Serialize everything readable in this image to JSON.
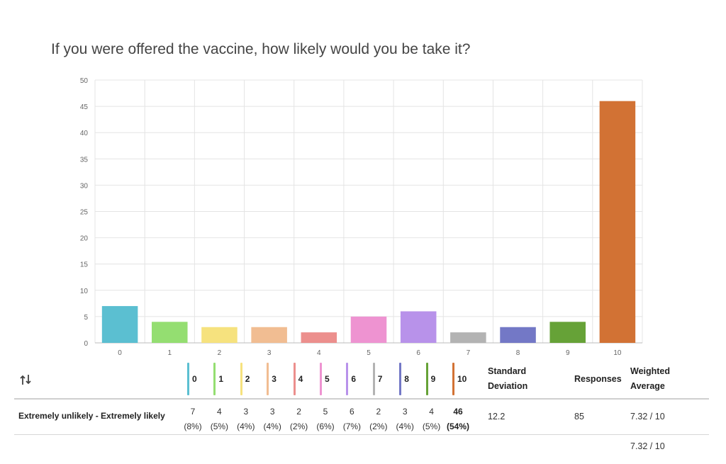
{
  "question": "If you were offered the vaccine, how likely would you be take it?",
  "chart_data": {
    "type": "bar",
    "categories": [
      "0",
      "1",
      "2",
      "3",
      "4",
      "5",
      "6",
      "7",
      "8",
      "9",
      "10"
    ],
    "values": [
      7,
      4,
      3,
      3,
      2,
      5,
      6,
      2,
      3,
      4,
      46
    ],
    "colors": [
      "#5bbfd1",
      "#94de71",
      "#f6e27e",
      "#f1bd92",
      "#ec8f8d",
      "#ee93d1",
      "#b892ea",
      "#b3b3b3",
      "#7378c6",
      "#66a237",
      "#d27234"
    ],
    "title": "If you were offered the vaccine, how likely would you be take it?",
    "xlabel": "",
    "ylabel": "",
    "ylim": [
      0,
      50
    ],
    "yticks": [
      "0",
      "5",
      "10",
      "15",
      "20",
      "25",
      "30",
      "35",
      "40",
      "45",
      "50"
    ],
    "grid": true
  },
  "table": {
    "columns": [
      "0",
      "1",
      "2",
      "3",
      "4",
      "5",
      "6",
      "7",
      "8",
      "9",
      "10"
    ],
    "std_dev_label_1": "Standard",
    "std_dev_label_2": "Deviation",
    "responses_label": "Responses",
    "weighted_label_1": "Weighted",
    "weighted_label_2": "Average",
    "row": {
      "label": "Extremely unlikely - Extremely likely",
      "counts": [
        "7",
        "4",
        "3",
        "3",
        "2",
        "5",
        "6",
        "2",
        "3",
        "4",
        "46"
      ],
      "percents": [
        "(8%)",
        "(5%)",
        "(4%)",
        "(4%)",
        "(2%)",
        "(6%)",
        "(7%)",
        "(2%)",
        "(4%)",
        "(5%)",
        "(54%)"
      ],
      "std_dev": "12.2",
      "responses": "85",
      "weighted_average": "7.32 / 10"
    },
    "total_weighted_average": "7.32 / 10"
  },
  "icons": {
    "sort": "swap-sort-icon"
  }
}
